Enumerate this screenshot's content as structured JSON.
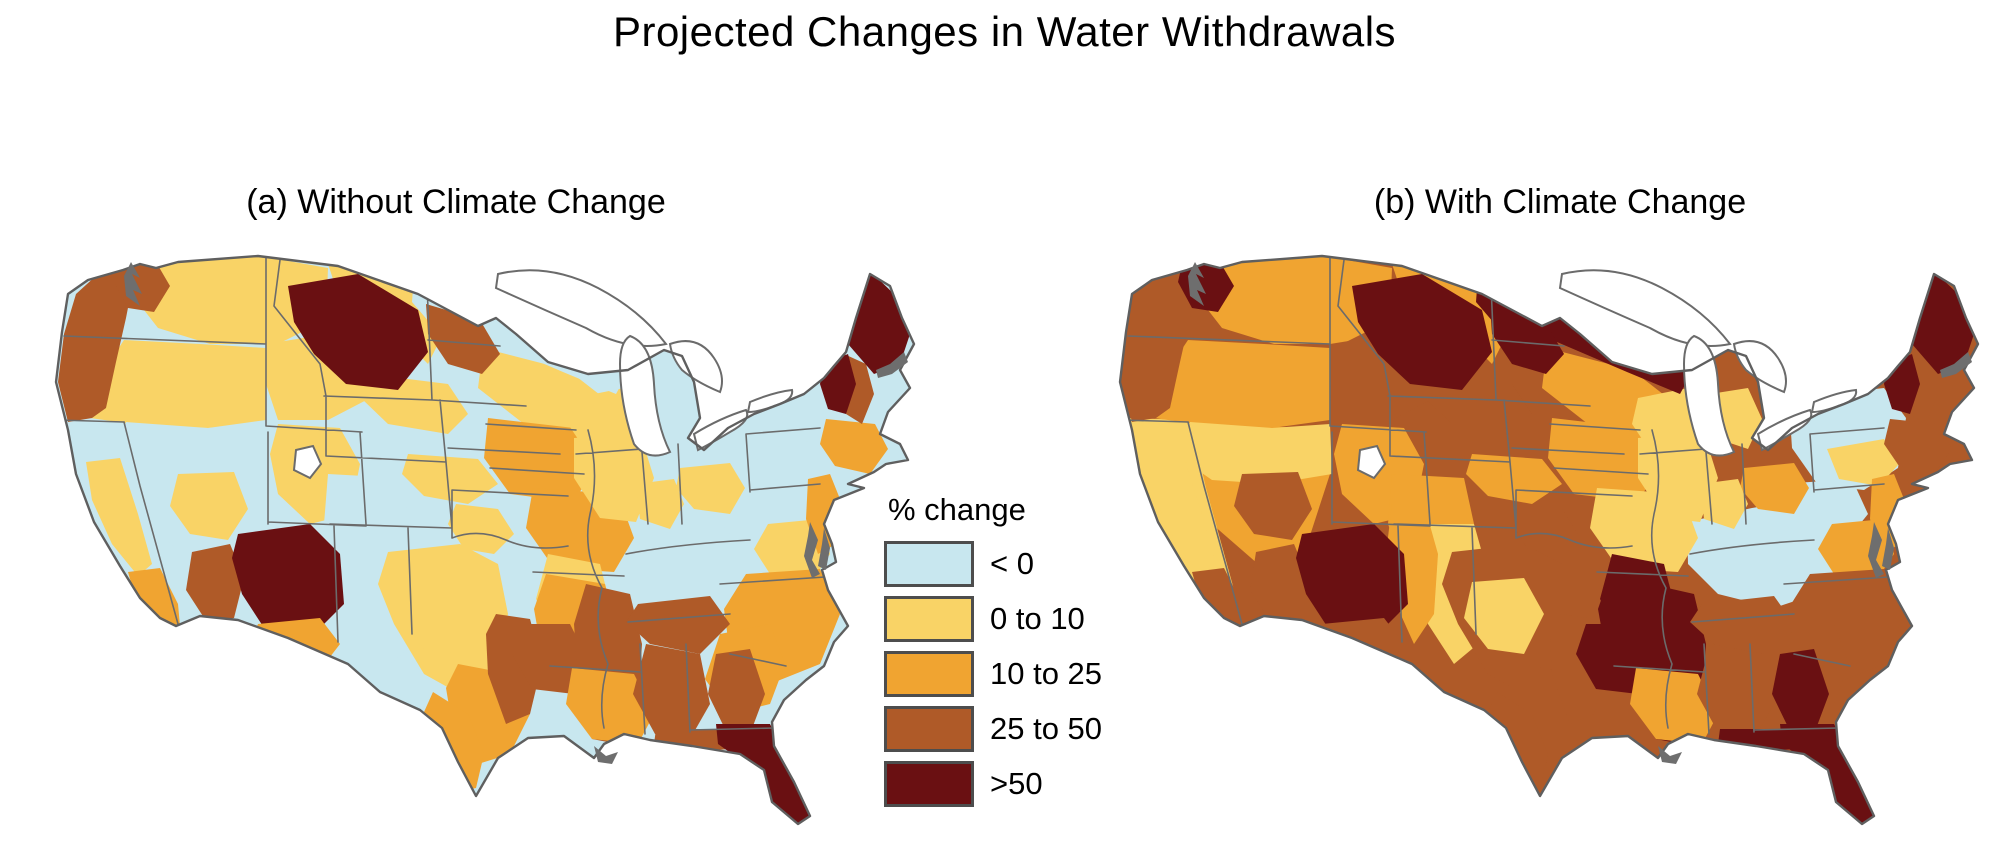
{
  "title": "Projected Changes in Water Withdrawals",
  "panels": {
    "a": {
      "label": "(a) Without Climate Change"
    },
    "b": {
      "label": "(b) With Climate Change"
    }
  },
  "legend": {
    "title": "% change",
    "classes": [
      {
        "key": "lt0",
        "label": "< 0",
        "color": "#C8E7EF"
      },
      {
        "key": "0to10",
        "label": "0 to 10",
        "color": "#F9D366"
      },
      {
        "key": "10to25",
        "label": "10 to 25",
        "color": "#F0A431"
      },
      {
        "key": "25to50",
        "label": "25 to 50",
        "color": "#AF5A28"
      },
      {
        "key": "gt50",
        "label": ">50",
        "color": "#6A1012"
      }
    ]
  },
  "map_style": {
    "boundary_color": "#6B6B6B",
    "coastline_color": "#5F5F5F",
    "coast_detail_color": "#6E6E6E",
    "water_color": "#FFFFFF",
    "background": "#FFFFFF"
  },
  "maps": {
    "a": {
      "base": "lt0",
      "regions": {
        "nevada-great-basin": "lt0",
        "california": "lt0",
        "columbia-plateau": "0to10",
        "oregon-interior": "0to10",
        "harney-great-basin-n": "lt0",
        "utah-bonneville": "0to10",
        "new-mexico-upper": "lt0",
        "pecos-upper-rio-grande": "lt0",
        "texas-central": "0to10",
        "ohio-valley": "lt0",
        "ny-pa": "lt0",
        "upper-mississippi-mn": "0to10",
        "iowa-des-moines": "10to25",
        "missouri-lower": "10to25",
        "illinois": "0to10",
        "wisconsin": "0to10",
        "dakota-james": "0to10",
        "kansas-smoky": "0to10",
        "oklahoma-cimarron": "0to10",
        "nd-central": "0to10",
        "montana-marias": "0to10",
        "snake-river-plain": "0to10",
        "pacific-coast-range": "25to50",
        "puget-sound-basin": "25to50",
        "upper-missouri-headwaters": "gt50",
        "souris-red-rainy": "lt0",
        "red-river-north": "25to50",
        "central-valley": "0to10",
        "socal-coastal": "10to25",
        "rio-grande-central": "lt0",
        "lower-colorado": "25to50",
        "gila-salt-az": "gt50",
        "az-border-south": "10to25",
        "humboldt-central-nv": "0to10",
        "texas-colorado-yellow": "0to10",
        "texas-gulf-coast": "10to25",
        "nueces-south-tx": "10to25",
        "trinity-east-tx": "25to50",
        "white-river-ar": "0to10",
        "ozark-arkansas": "10to25",
        "ouachita-red": "25to50",
        "lower-mississippi": "25to50",
        "louisiana-gulf": "10to25",
        "michigan-lower": "lt0",
        "wv-monongahela": "lt0",
        "scioto-ohio": "0to10",
        "wabash-indiana": "0to10",
        "ny-southern-tier": "lt0",
        "chesapeake-potomac": "0to10",
        "nj-delaware": "10to25",
        "carolina-coastal": "10to25",
        "tennessee-valley": "25to50",
        "savannah-georgia": "10to25",
        "chattahoochee-flint": "25to50",
        "alabama-tombigbee": "25to50",
        "florida-panhandle": "25to50",
        "florida-peninsula": "gt50",
        "new-england-south": "10to25",
        "merrimack-nh": "25to50",
        "vermont-champlain": "gt50",
        "maine": "gt50"
      }
    },
    "b": {
      "base": "25to50",
      "regions": {
        "nevada-great-basin": "10to25",
        "california": "0to10",
        "columbia-plateau": "10to25",
        "oregon-interior": "10to25",
        "harney-great-basin-n": "0to10",
        "utah-bonneville": "10to25",
        "new-mexico-upper": "10to25",
        "pecos-upper-rio-grande": "0to10",
        "texas-central": "25to50",
        "ohio-valley": "lt0",
        "ny-pa": "lt0",
        "upper-mississippi-mn": "10to25",
        "iowa-des-moines": "10to25",
        "missouri-lower": "0to10",
        "illinois": "0to10",
        "wisconsin": "0to10",
        "dakota-james": "25to50",
        "kansas-smoky": "10to25",
        "oklahoma-cimarron": "25to50",
        "nd-central": "25to50",
        "montana-marias": "10to25",
        "snake-river-plain": "25to50",
        "pacific-coast-range": "25to50",
        "puget-sound-basin": "gt50",
        "upper-missouri-headwaters": "gt50",
        "souris-red-rainy": "gt50",
        "red-river-north": "gt50",
        "central-valley": "0to10",
        "socal-coastal": "25to50",
        "rio-grande-central": "10to25",
        "lower-colorado": "25to50",
        "gila-salt-az": "gt50",
        "az-border-south": "25to50",
        "humboldt-central-nv": "25to50",
        "texas-colorado-yellow": "0to10",
        "texas-gulf-coast": "25to50",
        "nueces-south-tx": "25to50",
        "trinity-east-tx": "25to50",
        "white-river-ar": "gt50",
        "ozark-arkansas": "gt50",
        "ouachita-red": "gt50",
        "lower-mississippi": "gt50",
        "louisiana-gulf": "10to25",
        "michigan-lower": "0to10",
        "wv-monongahela": "lt0",
        "scioto-ohio": "10to25",
        "wabash-indiana": "0to10",
        "ny-southern-tier": "0to10",
        "chesapeake-potomac": "10to25",
        "nj-delaware": "10to25",
        "carolina-coastal": "25to50",
        "tennessee-valley": "25to50",
        "savannah-georgia": "25to50",
        "chattahoochee-flint": "gt50",
        "alabama-tombigbee": "25to50",
        "florida-panhandle": "gt50",
        "florida-peninsula": "gt50",
        "new-england-south": "25to50",
        "merrimack-nh": "25to50",
        "vermont-champlain": "gt50",
        "maine": "gt50"
      }
    }
  }
}
